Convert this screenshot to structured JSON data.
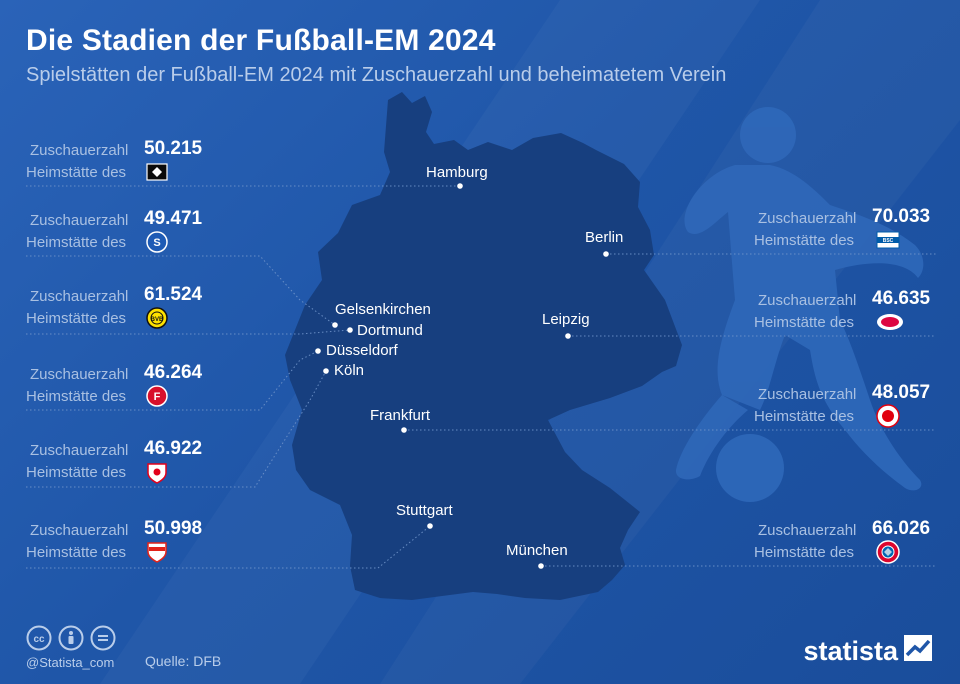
{
  "header": {
    "title": "Die Stadien der Fußball-EM 2024",
    "subtitle": "Spielstätten der Fußball-EM 2024 mit Zuschauerzahl und beheimatetem Verein"
  },
  "labels": {
    "capacity": "Zuschauerzahl",
    "home": "Heimstätte des"
  },
  "stadiums": [
    {
      "city": "Hamburg",
      "capacity": "50.215",
      "club_icon": "hsv-crest-icon"
    },
    {
      "city": "Gelsenkirchen",
      "capacity": "49.471",
      "club_icon": "schalke-crest-icon"
    },
    {
      "city": "Dortmund",
      "capacity": "61.524",
      "club_icon": "bvb-crest-icon"
    },
    {
      "city": "Düsseldorf",
      "capacity": "46.264",
      "club_icon": "fortuna-crest-icon"
    },
    {
      "city": "Köln",
      "capacity": "46.922",
      "club_icon": "koeln-crest-icon"
    },
    {
      "city": "Stuttgart",
      "capacity": "50.998",
      "club_icon": "vfb-crest-icon"
    },
    {
      "city": "Berlin",
      "capacity": "70.033",
      "club_icon": "hertha-crest-icon"
    },
    {
      "city": "Leipzig",
      "capacity": "46.635",
      "club_icon": "rbl-crest-icon"
    },
    {
      "city": "Frankfurt",
      "capacity": "48.057",
      "club_icon": "eintracht-crest-icon"
    },
    {
      "city": "München",
      "capacity": "66.026",
      "club_icon": "bayern-crest-icon"
    }
  ],
  "footer": {
    "handle": "@Statista_com",
    "source": "Quelle: DFB",
    "brand": "statista",
    "license_icons": [
      "cc-icon",
      "by-icon",
      "equals-icon"
    ]
  },
  "colors": {
    "background": "#1f56a8",
    "map_fill": "#173f7f",
    "label": "#a9c0e2",
    "text": "#ffffff"
  }
}
